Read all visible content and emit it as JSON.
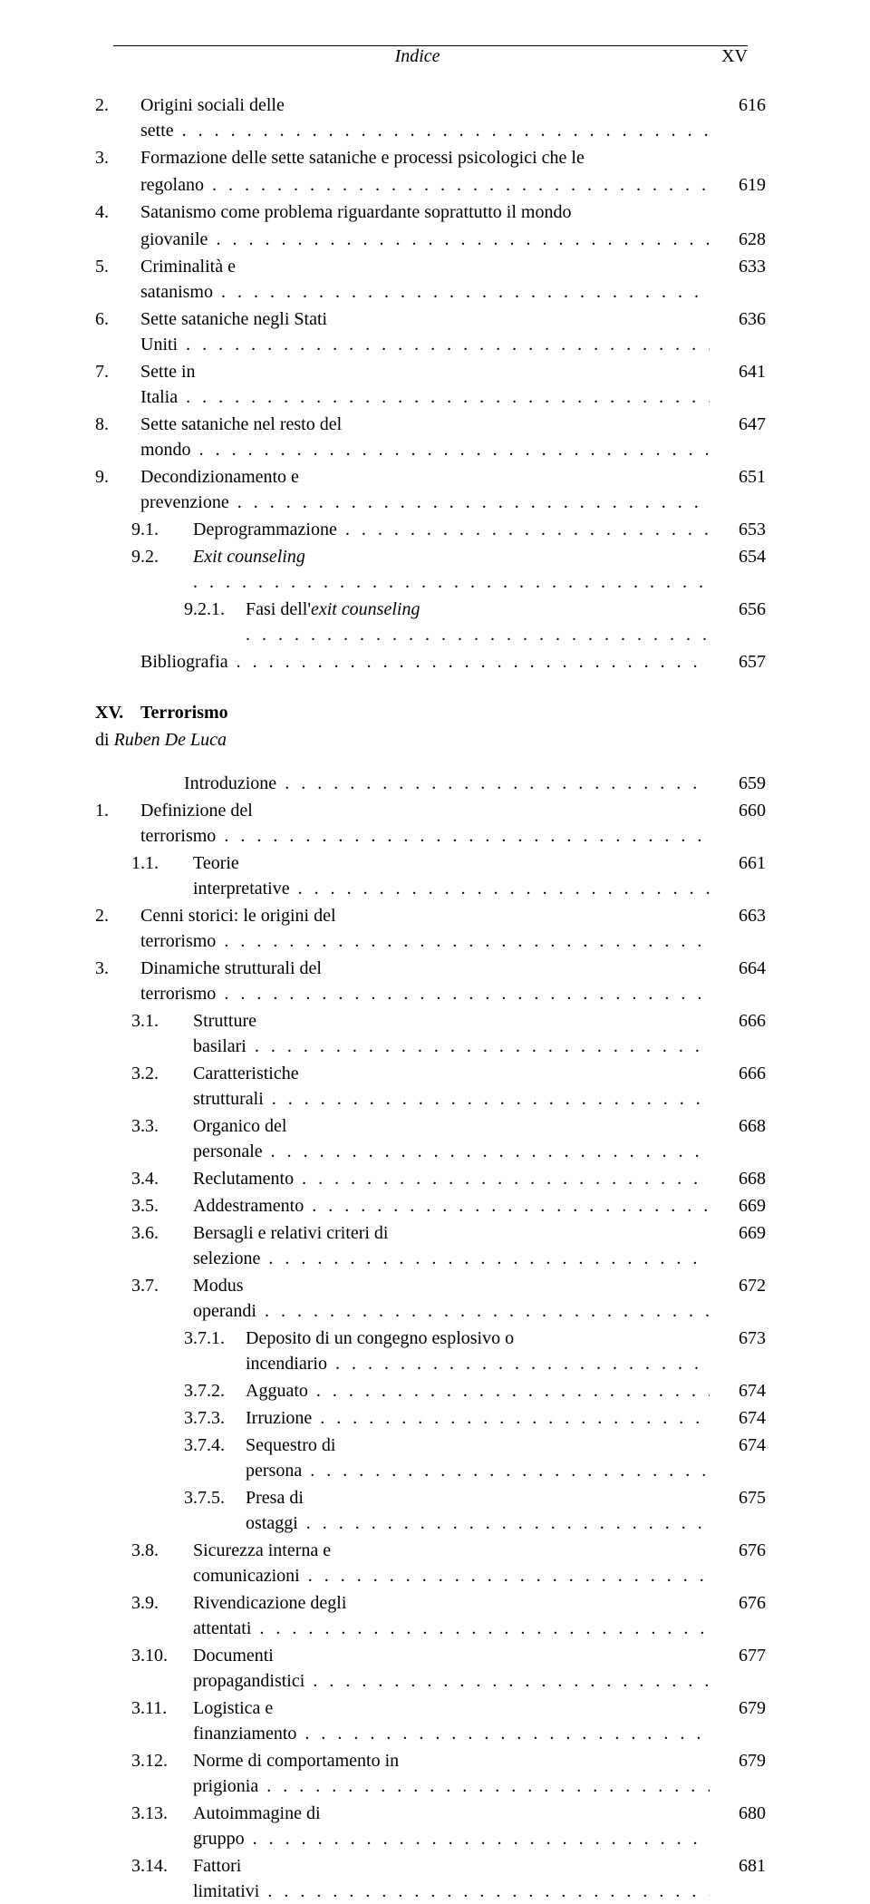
{
  "header": {
    "title": "Indice",
    "page_marker": "XV"
  },
  "sectionA": {
    "items": [
      {
        "num": "2.",
        "label": "Origini sociali delle sette",
        "page": "616",
        "level": 1
      },
      {
        "num": "3.",
        "label_line1": "Formazione delle sette sataniche e processi psicologici che le",
        "label_line2": "regolano",
        "page": "619",
        "level": 1,
        "multiline": true
      },
      {
        "num": "4.",
        "label_line1": "Satanismo come problema riguardante soprattutto il mondo",
        "label_line2": "giovanile",
        "page": "628",
        "level": 1,
        "multiline": true
      },
      {
        "num": "5.",
        "label": "Criminalità e satanismo",
        "page": "633",
        "level": 1
      },
      {
        "num": "6.",
        "label": "Sette sataniche negli Stati Uniti",
        "page": "636",
        "level": 1
      },
      {
        "num": "7.",
        "label": "Sette in Italia",
        "page": "641",
        "level": 1
      },
      {
        "num": "8.",
        "label": "Sette sataniche nel resto del mondo",
        "page": "647",
        "level": 1
      },
      {
        "num": "9.",
        "label": "Decondizionamento e prevenzione",
        "page": "651",
        "level": 1
      },
      {
        "num": "9.1.",
        "label": "Deprogrammazione",
        "page": "653",
        "level": 2
      },
      {
        "num": "9.2.",
        "label": "Exit counseling",
        "page": "654",
        "level": 2,
        "italic_label": true
      },
      {
        "num": "9.2.1.",
        "label_pre": "Fasi dell'",
        "label_it": "exit counseling",
        "page": "656",
        "level": 3,
        "mixed": true
      },
      {
        "num": "",
        "label": "Bibliografia",
        "page": "657",
        "level": 1
      }
    ]
  },
  "chapter": {
    "num": "XV.",
    "title": "Terrorismo",
    "author_prefix": "di ",
    "author": "Ruben De Luca"
  },
  "sectionB": {
    "intro": {
      "label": "Introduzione",
      "page": "659"
    },
    "items": [
      {
        "num": "1.",
        "label": "Definizione del terrorismo",
        "page": "660",
        "level": 1
      },
      {
        "num": "1.1.",
        "label": "Teorie interpretative",
        "page": "661",
        "level": 2
      },
      {
        "num": "2.",
        "label": "Cenni storici: le origini del terrorismo",
        "page": "663",
        "level": 1
      },
      {
        "num": "3.",
        "label": "Dinamiche strutturali del terrorismo",
        "page": "664",
        "level": 1
      },
      {
        "num": "3.1.",
        "label": "Strutture basilari",
        "page": "666",
        "level": 2
      },
      {
        "num": "3.2.",
        "label": "Caratteristiche strutturali",
        "page": "666",
        "level": 2
      },
      {
        "num": "3.3.",
        "label": "Organico del personale",
        "page": "668",
        "level": 2
      },
      {
        "num": "3.4.",
        "label": "Reclutamento",
        "page": "668",
        "level": 2
      },
      {
        "num": "3.5.",
        "label": "Addestramento",
        "page": "669",
        "level": 2
      },
      {
        "num": "3.6.",
        "label": "Bersagli e relativi criteri di selezione",
        "page": "669",
        "level": 2
      },
      {
        "num": "3.7.",
        "label": "Modus operandi",
        "page": "672",
        "level": 2
      },
      {
        "num": "3.7.1.",
        "label": "Deposito di un congegno esplosivo o incendiario",
        "page": "673",
        "level": 3
      },
      {
        "num": "3.7.2.",
        "label": "Agguato",
        "page": "674",
        "level": 3
      },
      {
        "num": "3.7.3.",
        "label": "Irruzione",
        "page": "674",
        "level": 3
      },
      {
        "num": "3.7.4.",
        "label": "Sequestro di persona",
        "page": "674",
        "level": 3
      },
      {
        "num": "3.7.5.",
        "label": "Presa di ostaggi",
        "page": "675",
        "level": 3
      },
      {
        "num": "3.8.",
        "label": "Sicurezza interna e comunicazioni",
        "page": "676",
        "level": 2
      },
      {
        "num": "3.9.",
        "label": "Rivendicazione degli attentati",
        "page": "676",
        "level": 2
      },
      {
        "num": "3.10.",
        "label": "Documenti propagandistici",
        "page": "677",
        "level": 2
      },
      {
        "num": "3.11.",
        "label": "Logistica e finanziamento",
        "page": "679",
        "level": 2
      },
      {
        "num": "3.12.",
        "label": "Norme di comportamento in prigionia",
        "page": "679",
        "level": 2
      },
      {
        "num": "3.13.",
        "label": "Autoimmagine di gruppo",
        "page": "680",
        "level": 2
      },
      {
        "num": "3.14.",
        "label": "Fattori limitativi",
        "page": "681",
        "level": 2
      }
    ]
  }
}
